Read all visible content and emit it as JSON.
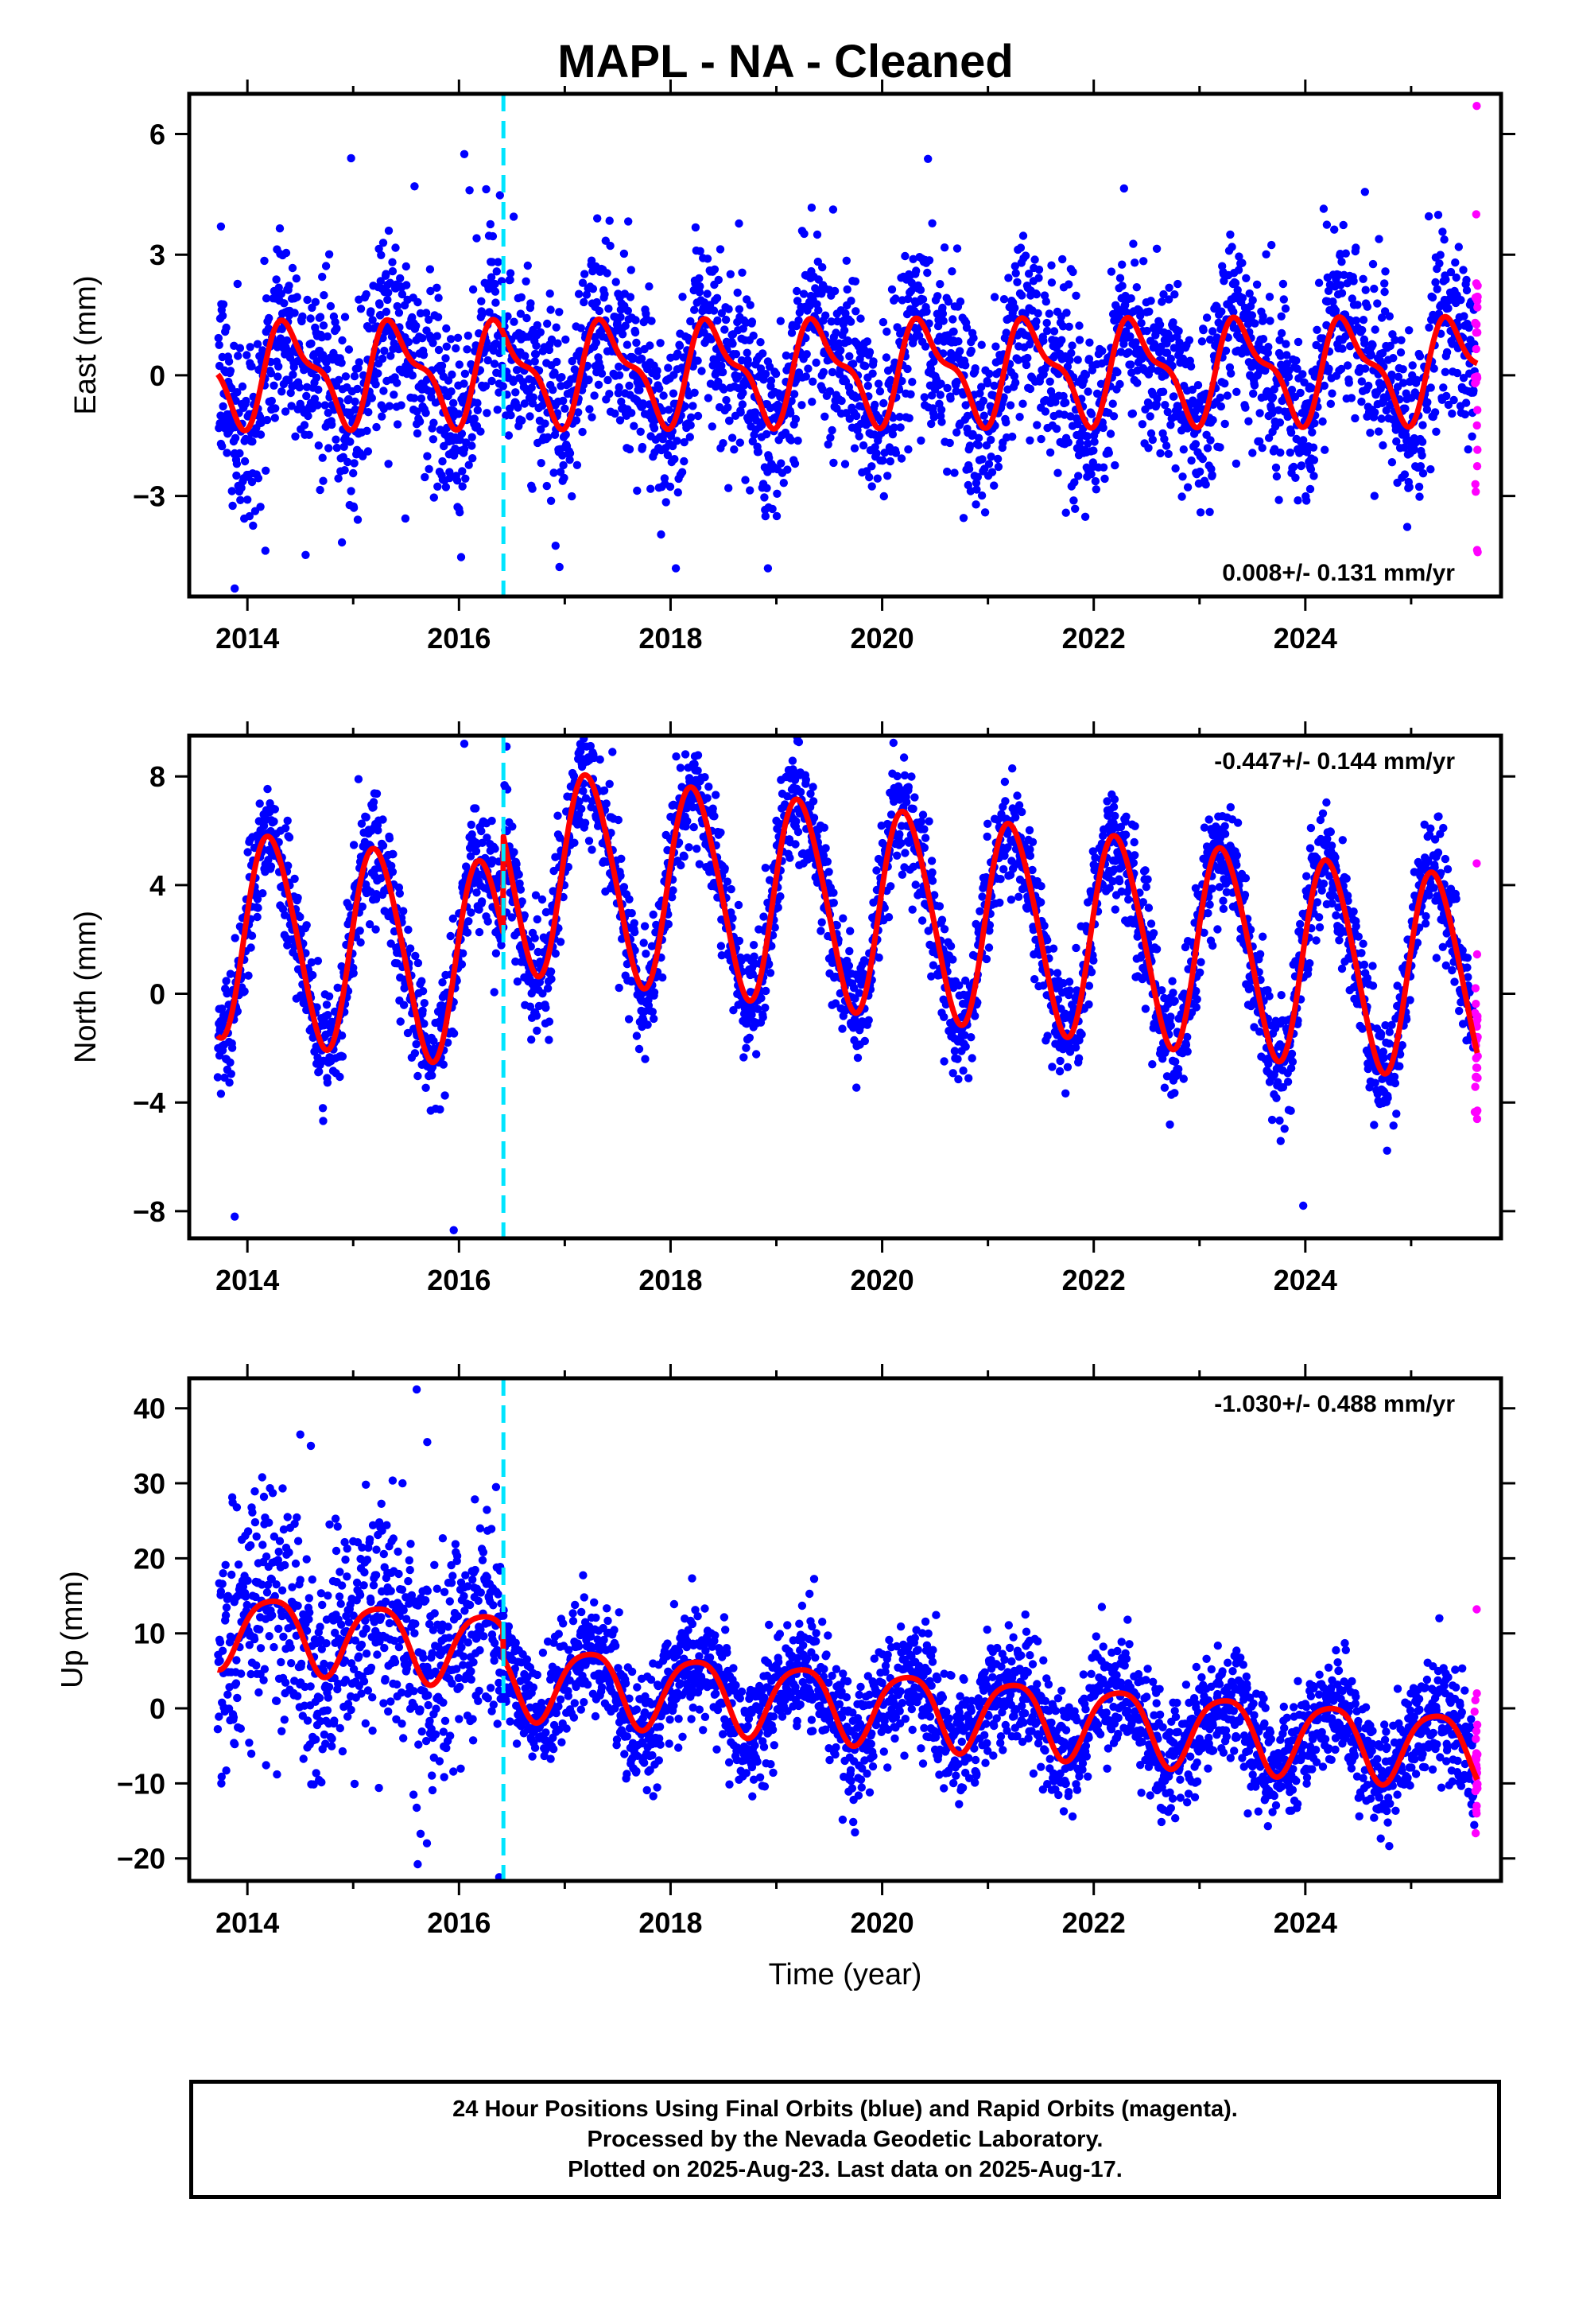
{
  "title": "MAPL  - NA - Cleaned",
  "footer": {
    "line1": "24 Hour Positions Using Final Orbits (blue) and Rapid Orbits (magenta).",
    "line2": "Processed by the Nevada Geodetic Laboratory.",
    "line3": "Plotted on 2025-Aug-23. Last data on 2025-Aug-17."
  },
  "colors": {
    "final_orbits": "#0000ff",
    "rapid_orbits": "#ff00ff",
    "model": "#ff0000",
    "equipment_change": "#00e5ff"
  },
  "chart_data": [
    {
      "type": "scatter",
      "name": "east",
      "ylabel": "East (mm)",
      "xlabel": "",
      "xlim": [
        2013.45,
        2025.85
      ],
      "ylim": [
        -5.5,
        7.0
      ],
      "xticks": [
        2014,
        2016,
        2018,
        2020,
        2022,
        2024
      ],
      "xticklabels": [
        "2014",
        "2016",
        "2018",
        "2020",
        "2022",
        "2024"
      ],
      "yticks": [
        -3,
        0,
        3,
        6
      ],
      "yticklabels": [
        "−3",
        "0",
        "3",
        "6"
      ],
      "rate": "0.008+/- 0.131 mm/yr",
      "equipment_change_x": 2016.42,
      "data_start": 2013.72,
      "rapid_start": 2025.6,
      "data_end": 2025.63,
      "model": {
        "offset": 0.1,
        "trend": 0.008,
        "annual_cos": -0.95,
        "annual_sin": 0.6,
        "semi_cos": -0.45,
        "semi_sin": -0.1,
        "ref_year": 2019.5
      },
      "scatter_sd": 1.15,
      "sample_points": [
        {
          "x": 2013.75,
          "y": 3.7
        },
        {
          "x": 2013.88,
          "y": -5.3
        },
        {
          "x": 2014.98,
          "y": 5.4
        },
        {
          "x": 2015.58,
          "y": 4.7
        },
        {
          "x": 2016.05,
          "y": 5.5
        },
        {
          "x": 2016.1,
          "y": 4.6
        },
        {
          "x": 2018.05,
          "y": -4.8
        },
        {
          "x": 2018.92,
          "y": -4.8
        },
        {
          "x": 2025.62,
          "y": 6.7
        }
      ]
    },
    {
      "type": "scatter",
      "name": "north",
      "ylabel": "North (mm)",
      "xlabel": "",
      "xlim": [
        2013.45,
        2025.85
      ],
      "ylim": [
        -9.0,
        9.5
      ],
      "xticks": [
        2014,
        2016,
        2018,
        2020,
        2022,
        2024
      ],
      "xticklabels": [
        "2014",
        "2016",
        "2018",
        "2020",
        "2022",
        "2024"
      ],
      "yticks": [
        -8,
        -4,
        0,
        4,
        8
      ],
      "yticklabels": [
        "−8",
        "−4",
        "0",
        "4",
        "8"
      ],
      "rate": "-0.447+/- 0.144 mm/yr",
      "equipment_change_x": 2016.42,
      "data_start": 2013.72,
      "rapid_start": 2025.6,
      "data_end": 2025.63,
      "model": {
        "offset": -0.3,
        "offset_jump": 3.6,
        "trend": -0.447,
        "annual_cos": 0.6,
        "annual_sin": 3.7,
        "semi_cos": 0.2,
        "semi_sin": 0.3,
        "ref_year": 2019.5
      },
      "scatter_sd": 1.05,
      "sample_points": [
        {
          "x": 2013.88,
          "y": -8.2
        },
        {
          "x": 2015.05,
          "y": 7.9
        },
        {
          "x": 2016.05,
          "y": 9.2
        },
        {
          "x": 2016.45,
          "y": 9.1
        },
        {
          "x": 2017.45,
          "y": 8.9
        },
        {
          "x": 2015.95,
          "y": -8.7
        },
        {
          "x": 2023.98,
          "y": -7.8
        },
        {
          "x": 2025.62,
          "y": 4.8
        }
      ]
    },
    {
      "type": "scatter",
      "name": "up",
      "ylabel": "Up (mm)",
      "xlabel": "Time (year)",
      "xlim": [
        2013.45,
        2025.85
      ],
      "ylim": [
        -23.0,
        44.0
      ],
      "xticks": [
        2014,
        2016,
        2018,
        2020,
        2022,
        2024
      ],
      "xticklabels": [
        "2014",
        "2016",
        "2018",
        "2020",
        "2022",
        "2024"
      ],
      "yticks": [
        -20,
        -10,
        0,
        10,
        20,
        30,
        40
      ],
      "yticklabels": [
        "−20",
        "−10",
        "0",
        "10",
        "20",
        "30",
        "40"
      ],
      "rate": "-1.030+/- 0.488 mm/yr",
      "equipment_change_x": 2016.42,
      "data_start": 2013.72,
      "rapid_start": 2025.6,
      "data_end": 2025.63,
      "model": {
        "offset": 9.5,
        "offset_jump": -4.0,
        "trend": -1.03,
        "annual_cos": 0.5,
        "annual_sin": 4.8,
        "semi_cos": 0.8,
        "semi_sin": -0.3,
        "ref_year": 2015.0
      },
      "scatter_sd": 4.0,
      "sample_points": [
        {
          "x": 2015.6,
          "y": 42.5
        },
        {
          "x": 2014.5,
          "y": 36.5
        },
        {
          "x": 2014.6,
          "y": 35.0
        },
        {
          "x": 2015.7,
          "y": 35.5
        },
        {
          "x": 2016.35,
          "y": 29.5
        },
        {
          "x": 2016.38,
          "y": -22.5
        },
        {
          "x": 2025.62,
          "y": 13.2
        },
        {
          "x": 2025.62,
          "y": -13.0
        }
      ]
    }
  ]
}
